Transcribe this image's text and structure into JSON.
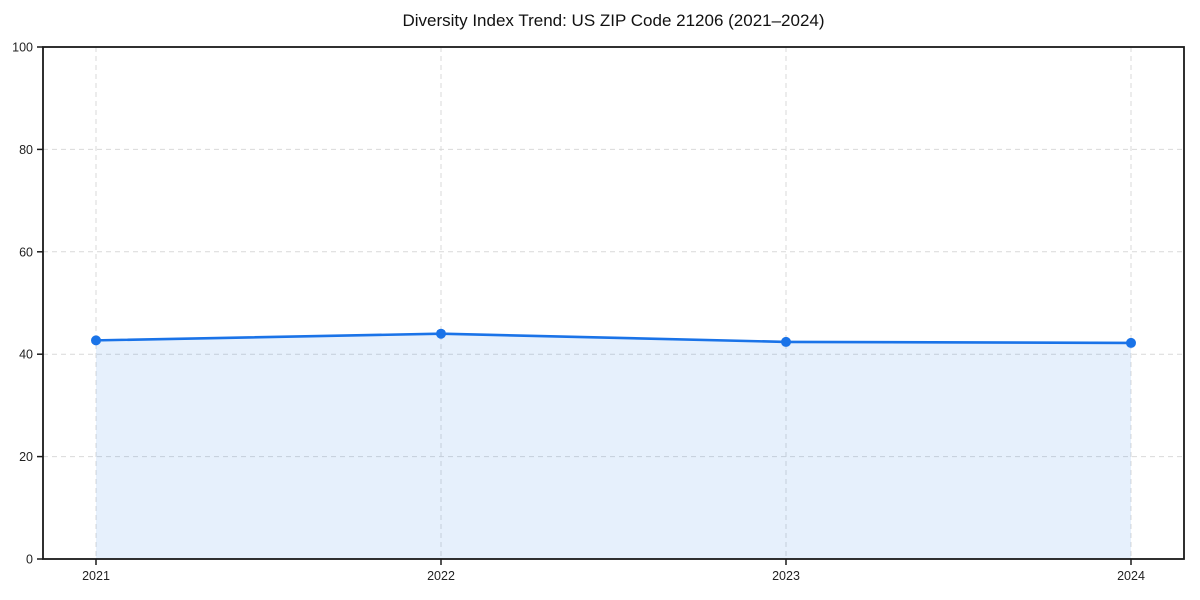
{
  "page": {
    "title": "Diversity Index Trend: US ZIP Code 21206 (2021–2024)"
  },
  "chart_data": {
    "type": "area",
    "title": "Diversity Index Trend: US ZIP Code 21206 (2021–2024)",
    "x": [
      "2021",
      "2022",
      "2023",
      "2024"
    ],
    "values": [
      42.7,
      44.0,
      42.4,
      42.2
    ],
    "series": [
      {
        "name": "Diversity Index",
        "values": [
          42.7,
          44.0,
          42.4,
          42.2
        ]
      }
    ],
    "xlabel": "",
    "ylabel": "",
    "ylim": [
      0,
      100
    ],
    "yticks": [
      0,
      20,
      40,
      60,
      80,
      100
    ],
    "xticks": [
      "2021",
      "2022",
      "2023",
      "2024"
    ],
    "grid": true,
    "grid_style": "dashed",
    "legend": false,
    "marker": "circle",
    "colors": {
      "line": "#1a73e8",
      "marker": "#1a73e8",
      "fill": "#1a73e8",
      "fill_opacity": 0.11,
      "grid": "#d9d9d9",
      "axis": "#1a1a1a",
      "tick_text": "#222222",
      "background": "#ffffff"
    }
  }
}
